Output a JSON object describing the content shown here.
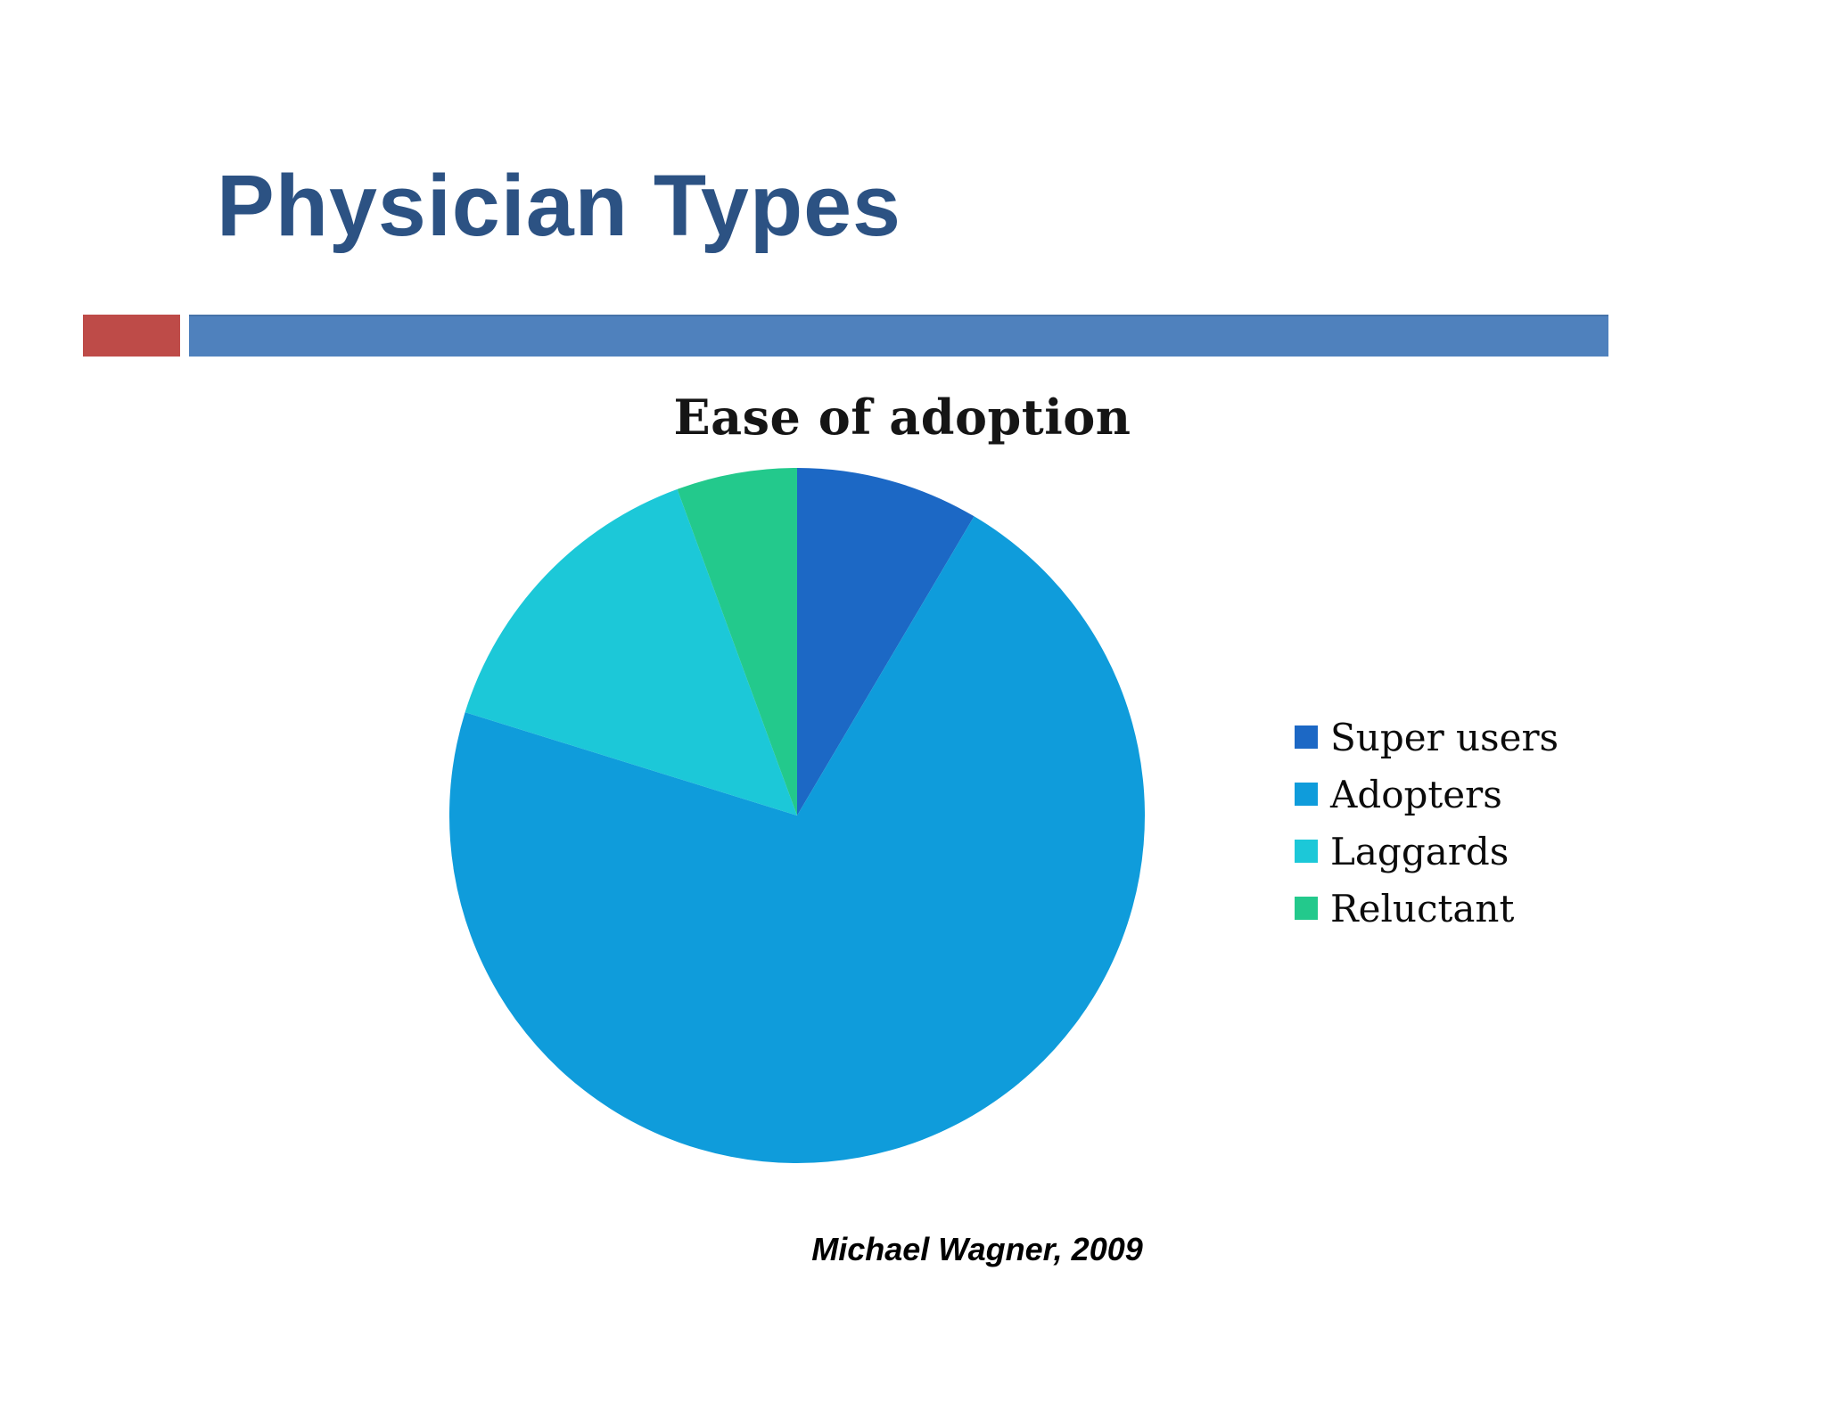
{
  "theme": {
    "background": "#ffffff",
    "title_color": "#2C5283",
    "accent_red": "#BE4B48",
    "accent_blue": "#4F81BD",
    "chart_text_color": "#151515"
  },
  "slide": {
    "title": "Physician Types",
    "caption": "Michael Wagner, 2009"
  },
  "chart_data": {
    "type": "pie",
    "title": "Ease of adoption",
    "categories": [
      "Super users",
      "Adopters",
      "Laggards",
      "Reluctant"
    ],
    "values_pct": [
      8.5,
      71.3,
      14.6,
      5.6
    ],
    "colors": [
      "#1C68C5",
      "#0F9CDB",
      "#1CC8D8",
      "#23C98C"
    ],
    "start_angle_deg": 0,
    "direction": "clockwise",
    "legend_position": "right",
    "data_labels_shown": false
  }
}
